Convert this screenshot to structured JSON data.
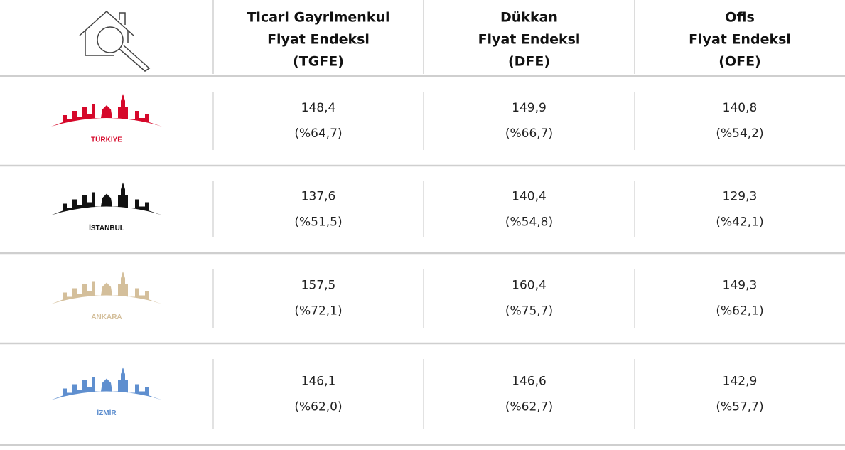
{
  "header": {
    "columns": [
      [
        "Ticari Gayrimenkul",
        "Fiyat Endeksi",
        "(TGFE)"
      ],
      [
        "Dükkan",
        "Fiyat Endeksi",
        "(DFE)"
      ],
      [
        "Ofis",
        "Fiyat Endeksi",
        "(OFE)"
      ]
    ]
  },
  "rows": [
    {
      "city": "TÜRKİYE",
      "values": [
        [
          "148,4",
          "(%64,7)"
        ],
        [
          "149,9",
          "(%66,7)"
        ],
        [
          "140,8",
          "(%54,2)"
        ]
      ]
    },
    {
      "city": "İSTANBUL",
      "values": [
        [
          "137,6",
          "(%51,5)"
        ],
        [
          "140,4",
          "(%54,8)"
        ],
        [
          "129,3",
          "(%42,1)"
        ]
      ]
    },
    {
      "city": "ANKARA",
      "values": [
        [
          "157,5",
          "(%72,1)"
        ],
        [
          "160,4",
          "(%75,7)"
        ],
        [
          "149,3",
          "(%62,1)"
        ]
      ]
    },
    {
      "city": "İZMİR",
      "values": [
        [
          "146,1",
          "(%62,0)"
        ],
        [
          "146,6",
          "(%62,7)"
        ],
        [
          "142,9",
          "(%57,7)"
        ]
      ]
    }
  ]
}
